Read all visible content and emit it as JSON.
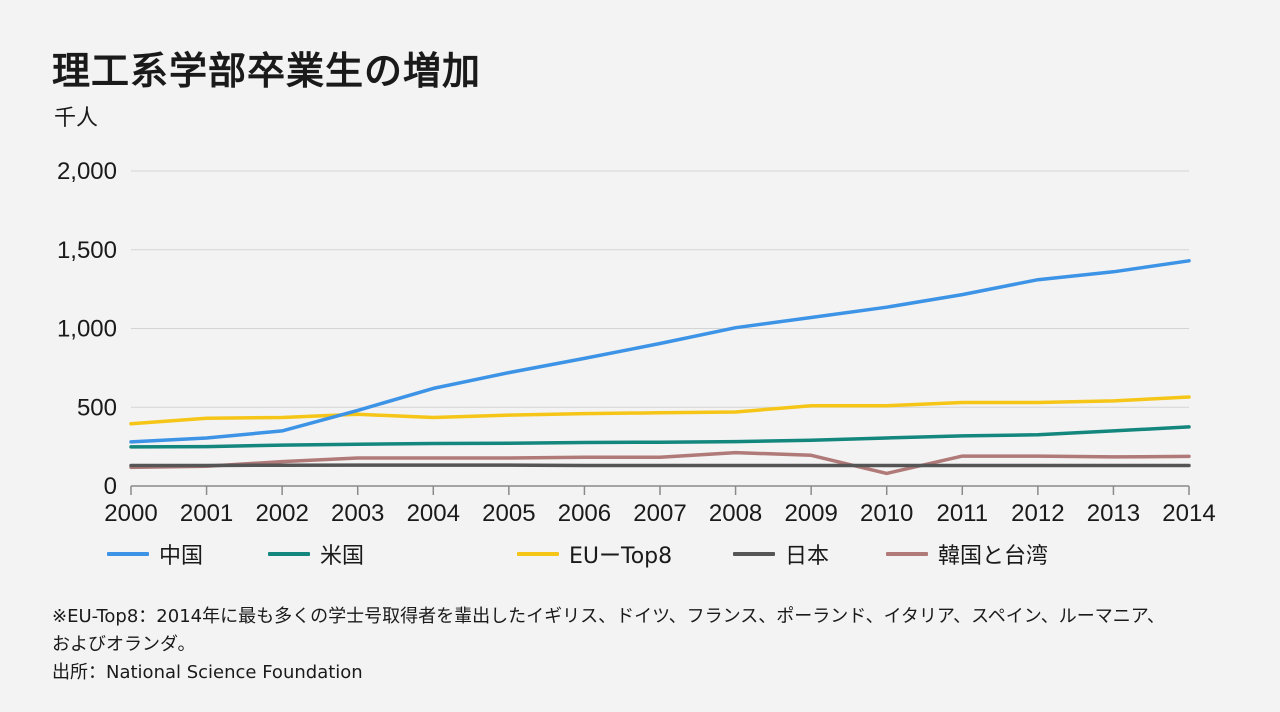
{
  "title": "理工系学部卒業生の増加",
  "unit": "千人",
  "chart_data": {
    "type": "line",
    "x": [
      2000,
      2001,
      2002,
      2003,
      2004,
      2005,
      2006,
      2007,
      2008,
      2009,
      2010,
      2011,
      2012,
      2013,
      2014
    ],
    "ylim": [
      0,
      2000
    ],
    "yticks": [
      0,
      500,
      1000,
      1500,
      2000
    ],
    "ytick_labels": [
      "0",
      "500",
      "1,000",
      "1,500",
      "2,000"
    ],
    "grid": true,
    "legend_position": "bottom",
    "series": [
      {
        "name": "中国",
        "color": "#3d94e6",
        "values": [
          280,
          305,
          350,
          480,
          620,
          720,
          810,
          905,
          1005,
          1070,
          1135,
          1215,
          1310,
          1360,
          1430
        ]
      },
      {
        "name": "米国",
        "color": "#13877e",
        "values": [
          248,
          250,
          260,
          265,
          270,
          272,
          276,
          278,
          282,
          290,
          305,
          318,
          325,
          350,
          375
        ]
      },
      {
        "name": "EUーTop8",
        "color": "#f5c518",
        "values": [
          395,
          430,
          435,
          455,
          435,
          450,
          460,
          465,
          470,
          510,
          510,
          530,
          530,
          540,
          565
        ]
      },
      {
        "name": "日本",
        "color": "#555555",
        "values": [
          130,
          130,
          132,
          133,
          133,
          133,
          130,
          130,
          130,
          130,
          130,
          130,
          130,
          130,
          130
        ]
      },
      {
        "name": "韓国と台湾",
        "color": "#b07a79",
        "values": [
          118,
          125,
          155,
          178,
          178,
          178,
          182,
          182,
          212,
          195,
          80,
          190,
          190,
          185,
          188
        ]
      }
    ]
  },
  "footnote": {
    "line1": "※EU-Top8：2014年に最も多くの学士号取得者を輩出したイギリス、ドイツ、フランス、ポーランド、イタリア、スペイン、ルーマニア、",
    "line2": "およびオランダ。",
    "source": "出所：National Science Foundation"
  }
}
